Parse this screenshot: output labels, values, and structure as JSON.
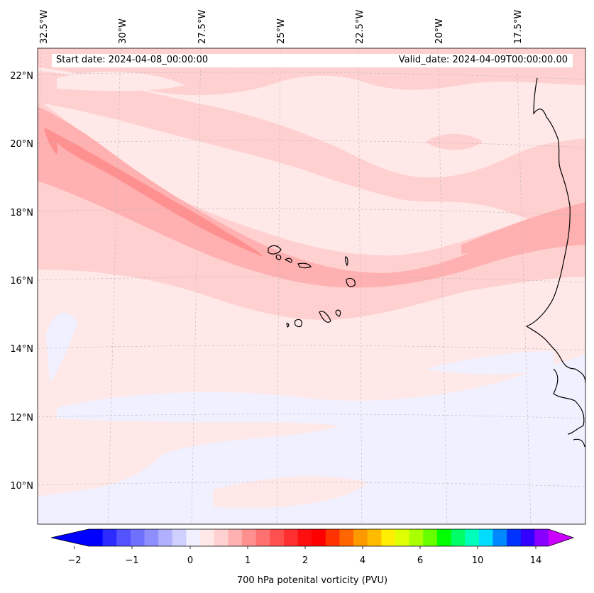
{
  "map": {
    "start_label": "Start date: 2024-04-08_00:00:00",
    "valid_label": "Valid_date: 2024-04-09T00:00:00.00",
    "lon_labels": [
      "32.5°W",
      "30°W",
      "27.5°W",
      "25°W",
      "22.5°W",
      "20°W",
      "17.5°W"
    ],
    "lat_labels": [
      "22°N",
      "20°N",
      "18°N",
      "16°N",
      "14°N",
      "12°N",
      "10°N"
    ],
    "extent": {
      "lon_min": -33,
      "lon_max": -16,
      "lat_min": 9,
      "lat_max": 22.8
    }
  },
  "colorbar": {
    "label": "700 hPa potenital vorticity (PVU)",
    "tick_labels": [
      "−2",
      "−1",
      "0",
      "1",
      "2",
      "4",
      "6",
      "10",
      "14"
    ],
    "colors": [
      "#0000ff",
      "#2b2bff",
      "#5252ff",
      "#7070ff",
      "#8e8eff",
      "#b0b0ff",
      "#d0d0ff",
      "#f0f0ff",
      "#ffe8e8",
      "#ffd0d0",
      "#ffb0b0",
      "#ff9090",
      "#ff7070",
      "#ff5050",
      "#ff3030",
      "#ff1010",
      "#ff0000",
      "#ff3300",
      "#ff6600",
      "#ff9900",
      "#ffbb00",
      "#ffee00",
      "#ddff00",
      "#aaff00",
      "#66ff00",
      "#00ff00",
      "#00ff66",
      "#00ffbb",
      "#00ddff",
      "#0088ff",
      "#0033ff",
      "#3300ff",
      "#8800ff"
    ],
    "over_color": "#cc00ff",
    "under_color": "#0000ff"
  },
  "field_colors": {
    "background": "#ffe8e8",
    "negative": "#f0f0ff",
    "level1": "#ffd0d0",
    "level2": "#ffb0b0",
    "level3": "#ff9090"
  }
}
